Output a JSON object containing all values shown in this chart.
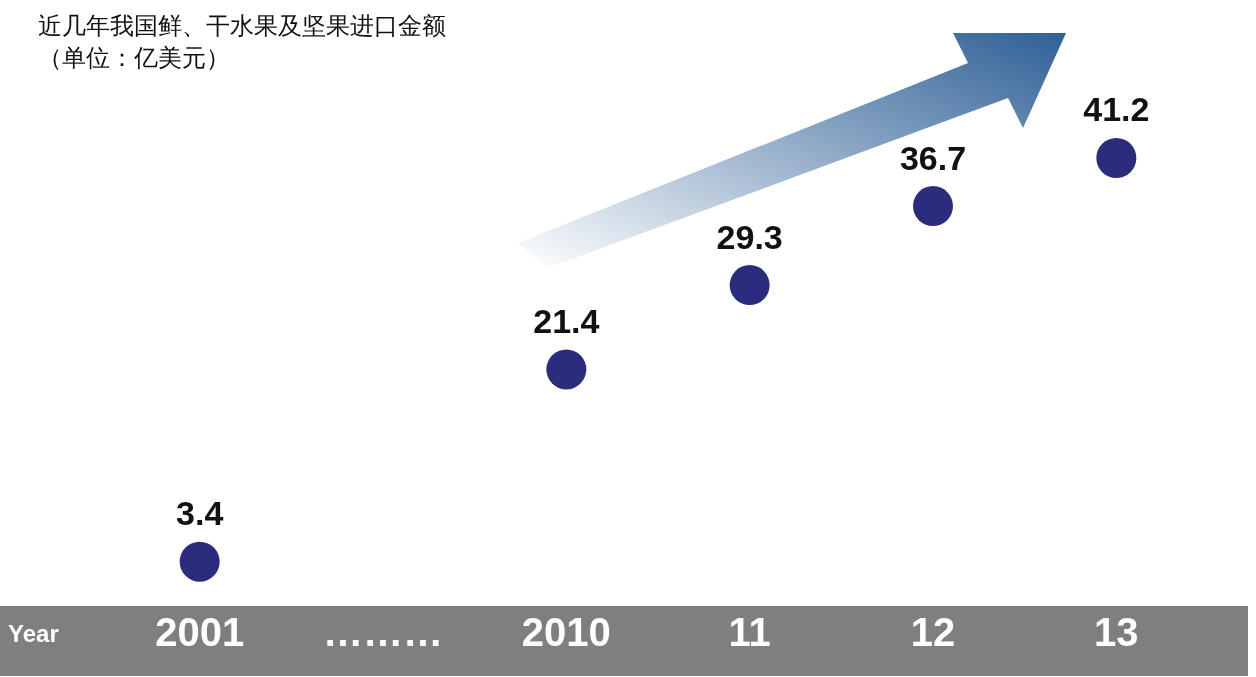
{
  "chart_data": {
    "type": "scatter",
    "title": "近几年我国鲜、干水果及坚果进口金额",
    "subtitle": "（单位：亿美元）",
    "xlabel": "Year",
    "categories": [
      "2001",
      "………",
      "2010",
      "11",
      "12",
      "13"
    ],
    "values": [
      3.4,
      null,
      21.4,
      29.3,
      36.7,
      41.2
    ],
    "color": "#2b2d7c",
    "data_labels": true,
    "marker": "circle"
  }
}
